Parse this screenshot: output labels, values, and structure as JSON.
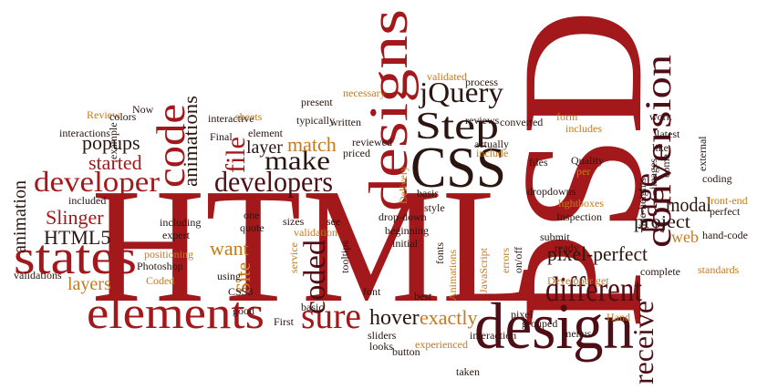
{
  "words": [
    "HTML",
    "PSD",
    "design",
    "designs",
    "CSS",
    "states",
    "elements",
    "developer",
    "developers",
    "make",
    "Step",
    "jQuery",
    "conversion",
    "page",
    "different",
    "pixel-perfect",
    "project",
    "modal",
    "web",
    "receive",
    "sure",
    "hover",
    "exactly",
    "code",
    "coded",
    "animations",
    "file",
    "layer",
    "match",
    "popups",
    "started",
    "Slinger",
    "HTML5",
    "layers",
    "want",
    "Site",
    "animation",
    "validations",
    "included",
    "including",
    "present",
    "typically",
    "written",
    "interactive",
    "element",
    "Final",
    "sheets",
    "Review",
    "colors",
    "example",
    "interactions",
    "Now",
    "validated",
    "process",
    "actually",
    "reviews",
    "converted",
    "include",
    "priced",
    "reviewed",
    "necessary",
    "files",
    "form",
    "includes",
    "Quality",
    "per",
    "work",
    "latest",
    "like",
    "external",
    "coding",
    "front-end",
    "perfect",
    "hand-code",
    "standards",
    "complete",
    "Hand",
    "taken",
    "experienced",
    "button",
    "looks",
    "sliders",
    "First",
    "basic",
    "good",
    "Photoshop",
    "Coded",
    "positioning",
    "CSS3",
    "using",
    "sizes",
    "see",
    "validation",
    "tooltips",
    "service",
    "drop-down",
    "beginning",
    "initial",
    "fonts",
    "best",
    "font",
    "Animations",
    "JavaScript",
    "errors",
    "on/off",
    "submit",
    "ready",
    "Inspection",
    "lightboxes",
    "dropdowns",
    "style",
    "basis",
    "Delivery",
    "pixel",
    "Developer get",
    "interaction",
    "grouped",
    "menus",
    "one",
    "quote",
    "expert",
    "images",
    "come",
    "line-heights"
  ]
}
